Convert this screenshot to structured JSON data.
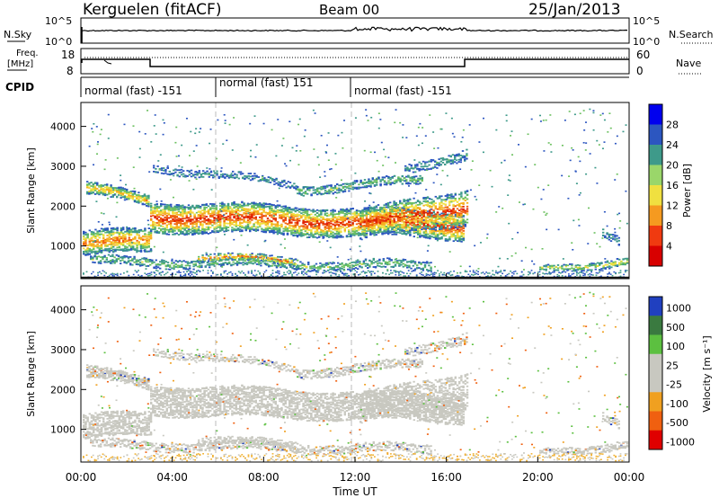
{
  "header": {
    "station": "Kerguelen (fitACF)",
    "beam": "Beam 00",
    "date": "25/Jan/2013"
  },
  "noise_panel": {
    "left_label": "N.Sky",
    "right_label": "N.Search",
    "left_ticks": [
      "10^5",
      "10^0"
    ],
    "right_ticks": [
      "10^5",
      "10^0"
    ]
  },
  "freq_panel": {
    "left_label_top": "Freq.",
    "left_label_bottom": "[MHz]",
    "right_label": "Nave",
    "left_ticks": [
      "18",
      "8"
    ],
    "right_ticks": [
      "60",
      "0"
    ]
  },
  "cpid": {
    "label": "CPID",
    "segments": [
      {
        "text": "normal (fast) -151",
        "start_h": 0,
        "end_h": 6
      },
      {
        "text": "normal (fast) 151",
        "start_h": 6,
        "end_h": 12
      },
      {
        "text": "normal (fast) -151",
        "start_h": 12,
        "end_h": 24
      }
    ]
  },
  "chart_data": [
    {
      "type": "heatmap",
      "name": "power",
      "ylabel": "Slant Range [km]",
      "ylim": [
        180,
        4600
      ],
      "yticks": [
        "1000",
        "2000",
        "3000",
        "4000"
      ],
      "colorbar_label": "Power [dB]",
      "colorbar_ticks": [
        "28",
        "24",
        "20",
        "16",
        "12",
        "8",
        "4"
      ],
      "colorbar_colors": [
        "#0000ee",
        "#2c56c0",
        "#3e9a8a",
        "#9ad66a",
        "#f0e040",
        "#f59a20",
        "#f03a10",
        "#d80000"
      ]
    },
    {
      "type": "heatmap",
      "name": "velocity",
      "ylabel": "Slant Range [km]",
      "ylim": [
        180,
        4600
      ],
      "yticks": [
        "1000",
        "2000",
        "3000",
        "4000"
      ],
      "colorbar_label": "Velocity [m s⁻¹]",
      "colorbar_ticks": [
        "1000",
        "500",
        "100",
        "25",
        "-25",
        "-100",
        "-500",
        "-1000"
      ],
      "colorbar_colors": [
        "#2040c0",
        "#3a7a40",
        "#5cc040",
        "#c8c8c0",
        "#c8c8c0",
        "#f0a020",
        "#f06010",
        "#e00000"
      ]
    }
  ],
  "xaxis": {
    "xlabel": "Time UT",
    "ticks": [
      "00:00",
      "04:00",
      "08:00",
      "12:00",
      "16:00",
      "20:00",
      "00:00"
    ]
  }
}
